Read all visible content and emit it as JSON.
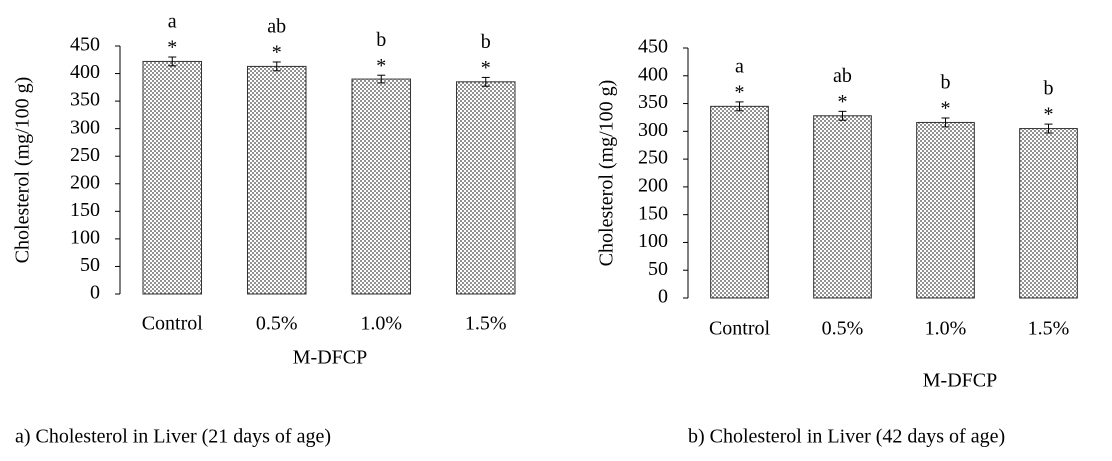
{
  "chart_data": [
    {
      "type": "bar",
      "ylabel": "Cholesterol (mg/100 g)",
      "xlabel": "M-DFCP",
      "caption": "a) Cholesterol in Liver (21 days of age)",
      "categories": [
        "Control",
        "0.5%",
        "1.0%",
        "1.5%"
      ],
      "values": [
        422,
        413,
        390,
        385
      ],
      "errors": [
        8,
        8,
        7,
        8
      ],
      "letters": [
        "a",
        "ab",
        "b",
        "b"
      ],
      "markers": [
        "*",
        "*",
        "*",
        "*"
      ],
      "color": "#444444",
      "ylim": [
        0,
        450
      ],
      "yticks": [
        0,
        50,
        100,
        150,
        200,
        250,
        300,
        350,
        400,
        450
      ]
    },
    {
      "type": "bar",
      "ylabel": "Cholesterol (mg/100 g)",
      "xlabel": "M-DFCP",
      "caption": "b) Cholesterol in Liver (42 days of age)",
      "categories": [
        "Control",
        "0.5%",
        "1.0%",
        "1.5%"
      ],
      "values": [
        345,
        328,
        316,
        305
      ],
      "errors": [
        8,
        8,
        8,
        8
      ],
      "letters": [
        "a",
        "ab",
        "b",
        "b"
      ],
      "markers": [
        "*",
        "*",
        "*",
        "*"
      ],
      "color": "#444444",
      "ylim": [
        0,
        450
      ],
      "yticks": [
        0,
        50,
        100,
        150,
        200,
        250,
        300,
        350,
        400,
        450
      ]
    }
  ]
}
